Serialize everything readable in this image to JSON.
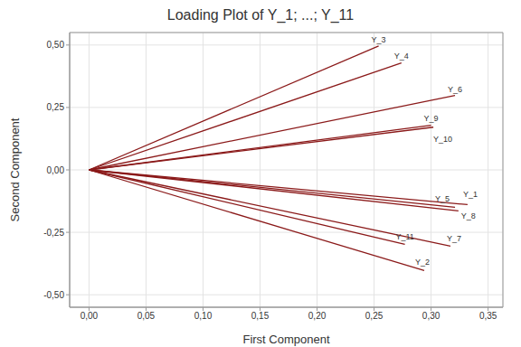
{
  "chart_data": {
    "type": "line",
    "title": "Loading Plot of Y_1; ...; Y_11",
    "x_label": "First Component",
    "y_label": "Second Component",
    "series": [
      {
        "name": "Y_1",
        "color": "#8b1a1a",
        "x": [
          0,
          0.332
        ],
        "values": [
          0,
          -0.139
        ]
      },
      {
        "name": "Y_2",
        "color": "#8b1a1a",
        "x": [
          0,
          0.294
        ],
        "values": [
          0,
          -0.403
        ]
      },
      {
        "name": "Y_3",
        "color": "#8b1a1a",
        "x": [
          0,
          0.254
        ],
        "values": [
          0,
          0.496
        ]
      },
      {
        "name": "Y_4",
        "color": "#8b1a1a",
        "x": [
          0,
          0.274
        ],
        "values": [
          0,
          0.428
        ]
      },
      {
        "name": "Y_5",
        "color": "#8b1a1a",
        "x": [
          0,
          0.321
        ],
        "values": [
          0,
          -0.15
        ]
      },
      {
        "name": "Y_6",
        "color": "#8b1a1a",
        "x": [
          0,
          0.321
        ],
        "values": [
          0,
          0.298
        ]
      },
      {
        "name": "Y_7",
        "color": "#8b1a1a",
        "x": [
          0,
          0.317
        ],
        "values": [
          0,
          -0.305
        ]
      },
      {
        "name": "Y_8",
        "color": "#8b1a1a",
        "x": [
          0,
          0.324
        ],
        "values": [
          0,
          -0.164
        ]
      },
      {
        "name": "Y_9",
        "color": "#8b1a1a",
        "x": [
          0,
          0.3
        ],
        "values": [
          0,
          0.179
        ]
      },
      {
        "name": "Y_10",
        "color": "#8b1a1a",
        "x": [
          0,
          0.302
        ],
        "values": [
          0,
          0.171
        ]
      },
      {
        "name": "Y_11",
        "color": "#8b1a1a",
        "x": [
          0,
          0.277
        ],
        "values": [
          0,
          -0.298
        ]
      }
    ],
    "xlim": [
      -0.017,
      0.363
    ],
    "ylim": [
      -0.55,
      0.55
    ],
    "xticks": [
      {
        "value": 0,
        "label": "0,00"
      },
      {
        "value": 0.05,
        "label": "0,05"
      },
      {
        "value": 0.1,
        "label": "0,10"
      },
      {
        "value": 0.15,
        "label": "0,15"
      },
      {
        "value": 0.2,
        "label": "0,20"
      },
      {
        "value": 0.25,
        "label": "0,25"
      },
      {
        "value": 0.3,
        "label": "0,30"
      },
      {
        "value": 0.35,
        "label": "0,35"
      }
    ],
    "yticks": [
      {
        "value": -0.5,
        "label": "-0,50"
      },
      {
        "value": -0.25,
        "label": "-0,25"
      },
      {
        "value": 0,
        "label": "0,00"
      },
      {
        "value": 0.25,
        "label": "0,25"
      },
      {
        "value": 0.5,
        "label": "0,50"
      }
    ],
    "grid": true
  }
}
